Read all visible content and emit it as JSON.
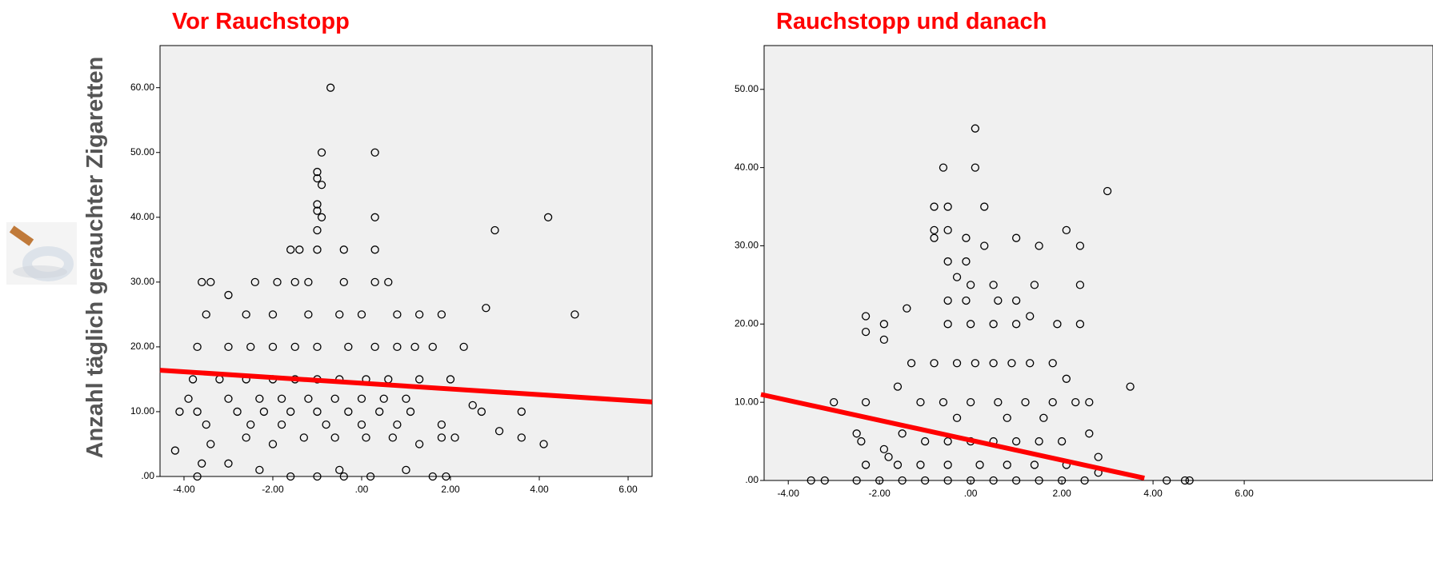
{
  "chart_data": [
    {
      "type": "scatter",
      "title": "Vor Rauchstopp",
      "ylabel": "Anzahl täglich gerauchter Zigaretten",
      "title_color": "#ff0000",
      "color": "#000000",
      "background": "#f0f0f0",
      "xlim": [
        -4.54,
        6.54
      ],
      "ylim": [
        0,
        66.5
      ],
      "xticks": [
        {
          "value": -4,
          "label": "-4.00"
        },
        {
          "value": -2,
          "label": "-2.00"
        },
        {
          "value": 0,
          "label": ".00"
        },
        {
          "value": 2,
          "label": "2.00"
        },
        {
          "value": 4,
          "label": "4.00"
        },
        {
          "value": 6,
          "label": "6.00"
        }
      ],
      "yticks": [
        {
          "value": 0,
          "label": ".00"
        },
        {
          "value": 10,
          "label": "10.00"
        },
        {
          "value": 20,
          "label": "20.00"
        },
        {
          "value": 30,
          "label": "30.00"
        },
        {
          "value": 40,
          "label": "40.00"
        },
        {
          "value": 50,
          "label": "50.00"
        },
        {
          "value": 60,
          "label": "60.00"
        }
      ],
      "x": [
        -0.7,
        -0.9,
        0.3,
        -1.0,
        -1.0,
        -0.9,
        -1.0,
        -1.0,
        -0.9,
        0.3,
        4.2,
        3.0,
        -1.0,
        -1.0,
        -1.6,
        -1.4,
        -0.4,
        0.3,
        -3.6,
        -3.4,
        -2.4,
        -1.9,
        -1.5,
        -1.2,
        -0.4,
        0.3,
        0.6,
        -3.0,
        2.8,
        4.8,
        -3.5,
        -2.6,
        -2.0,
        -1.2,
        -0.5,
        0,
        0.8,
        1.3,
        1.8,
        -3.7,
        -3.0,
        -2.5,
        -2.0,
        -1.5,
        -1.0,
        -0.3,
        0.3,
        0.8,
        1.2,
        1.6,
        2.3,
        -3.8,
        -3.2,
        -2.6,
        -2.0,
        -1.5,
        -1.0,
        -0.5,
        0.1,
        0.6,
        1.3,
        2.0,
        -3.9,
        -3.0,
        -2.3,
        -1.8,
        -1.2,
        -0.6,
        0,
        0.5,
        1.0,
        -4.1,
        -3.7,
        -2.8,
        -2.2,
        -1.6,
        -1.0,
        -0.3,
        0.4,
        1.1,
        2.5,
        2.7,
        3.6,
        -3.5,
        -2.5,
        -1.8,
        -0.8,
        0,
        0.8,
        1.8,
        -4.2,
        -3.4,
        -2.6,
        -2.0,
        -1.3,
        -0.6,
        0.1,
        0.7,
        1.3,
        1.8,
        2.1,
        3.1,
        3.6,
        4.1,
        -3.7,
        -3.0,
        -2.3,
        -1.6,
        -1.0,
        -0.4,
        0.2,
        1.0,
        1.6,
        1.9,
        -3.6,
        -0.5
      ],
      "y": [
        60,
        50,
        50,
        47,
        46,
        45,
        42,
        41,
        40,
        40,
        40,
        38,
        38,
        35,
        35,
        35,
        35,
        35,
        30,
        30,
        30,
        30,
        30,
        30,
        30,
        30,
        30,
        28,
        26,
        25,
        25,
        25,
        25,
        25,
        25,
        25,
        25,
        25,
        25,
        20,
        20,
        20,
        20,
        20,
        20,
        20,
        20,
        20,
        20,
        20,
        20,
        15,
        15,
        15,
        15,
        15,
        15,
        15,
        15,
        15,
        15,
        15,
        12,
        12,
        12,
        12,
        12,
        12,
        12,
        12,
        12,
        10,
        10,
        10,
        10,
        10,
        10,
        10,
        10,
        10,
        11,
        10,
        10,
        8,
        8,
        8,
        8,
        8,
        8,
        8,
        4,
        5,
        6,
        5,
        6,
        6,
        6,
        6,
        5,
        6,
        6,
        7,
        6,
        5,
        0,
        2,
        1,
        0,
        0,
        0,
        0,
        1,
        0,
        0,
        2,
        1
      ],
      "fit_line": {
        "x": [
          -4.54,
          6.54
        ],
        "y": [
          16.4,
          11.5
        ],
        "color": "#ff0000"
      }
    },
    {
      "type": "scatter",
      "title": "Rauchstopp und danach",
      "title_color": "#ff0000",
      "color": "#000000",
      "background": "#f0f0f0",
      "xlim": [
        -4.53,
        10.14
      ],
      "ylim": [
        0,
        55.6
      ],
      "xticks": [
        {
          "value": -4,
          "label": "-4.00"
        },
        {
          "value": -2,
          "label": "-2.00"
        },
        {
          "value": 0,
          "label": ".00"
        },
        {
          "value": 2,
          "label": "2.00"
        },
        {
          "value": 4,
          "label": "4.00"
        },
        {
          "value": 6,
          "label": "6.00"
        }
      ],
      "yticks": [
        {
          "value": 0,
          "label": ".00"
        },
        {
          "value": 10,
          "label": "10.00"
        },
        {
          "value": 20,
          "label": "20.00"
        },
        {
          "value": 30,
          "label": "30.00"
        },
        {
          "value": 40,
          "label": "40.00"
        },
        {
          "value": 50,
          "label": "50.00"
        }
      ],
      "x": [
        0.1,
        -0.6,
        0.1,
        3.0,
        -0.8,
        -0.5,
        0.3,
        -0.8,
        -0.5,
        2.1,
        -0.1,
        1.0,
        -0.8,
        0.3,
        1.5,
        2.4,
        -0.1,
        -0.5,
        -0.3,
        0,
        0.5,
        1.4,
        2.4,
        -0.5,
        -0.1,
        0.6,
        1.0,
        -2.3,
        -2.3,
        -1.9,
        -1.9,
        -0.5,
        0,
        0.5,
        1.0,
        1.3,
        1.9,
        2.4,
        -1.4,
        -1.3,
        -0.8,
        -0.3,
        0.1,
        0.5,
        0.9,
        1.3,
        1.8,
        2.1,
        2.6,
        3.5,
        -3.0,
        -2.3,
        -1.6,
        -1.1,
        -0.6,
        0,
        0.6,
        1.2,
        1.8,
        2.3,
        -2.5,
        -2.4,
        -1.9,
        -1.8,
        -1.5,
        -1.0,
        -0.5,
        0,
        0.5,
        1.0,
        1.5,
        2.0,
        2.6,
        2.8,
        -1.6,
        -1.1,
        -0.5,
        0.2,
        0.8,
        1.4,
        2.1,
        2.8,
        -3.5,
        -3.2,
        -2.5,
        -2.0,
        -1.5,
        -1.0,
        -0.5,
        0,
        0.5,
        1.0,
        1.5,
        2.0,
        2.5,
        4.3,
        4.7,
        4.8,
        -2.3,
        0.8,
        1.6,
        -0.3
      ],
      "y": [
        45,
        40,
        40,
        37,
        35,
        35,
        35,
        32,
        32,
        32,
        31,
        31,
        31,
        30,
        30,
        30,
        28,
        28,
        26,
        25,
        25,
        25,
        25,
        23,
        23,
        23,
        23,
        21,
        19,
        20,
        18,
        20,
        20,
        20,
        20,
        21,
        20,
        20,
        22,
        15,
        15,
        15,
        15,
        15,
        15,
        15,
        15,
        13,
        10,
        12,
        10,
        10,
        12,
        10,
        10,
        10,
        10,
        10,
        10,
        10,
        6,
        5,
        4,
        3,
        6,
        5,
        5,
        5,
        5,
        5,
        5,
        5,
        6,
        3,
        2,
        2,
        2,
        2,
        2,
        2,
        2,
        1,
        0,
        0,
        0,
        0,
        0,
        0,
        0,
        0,
        0,
        0,
        0,
        0,
        0,
        0,
        0,
        0,
        2,
        8,
        8,
        8
      ],
      "fit_line": {
        "x": [
          -4.6,
          3.81
        ],
        "y": [
          11.0,
          0.3
        ],
        "color": "#ff0000"
      }
    }
  ]
}
